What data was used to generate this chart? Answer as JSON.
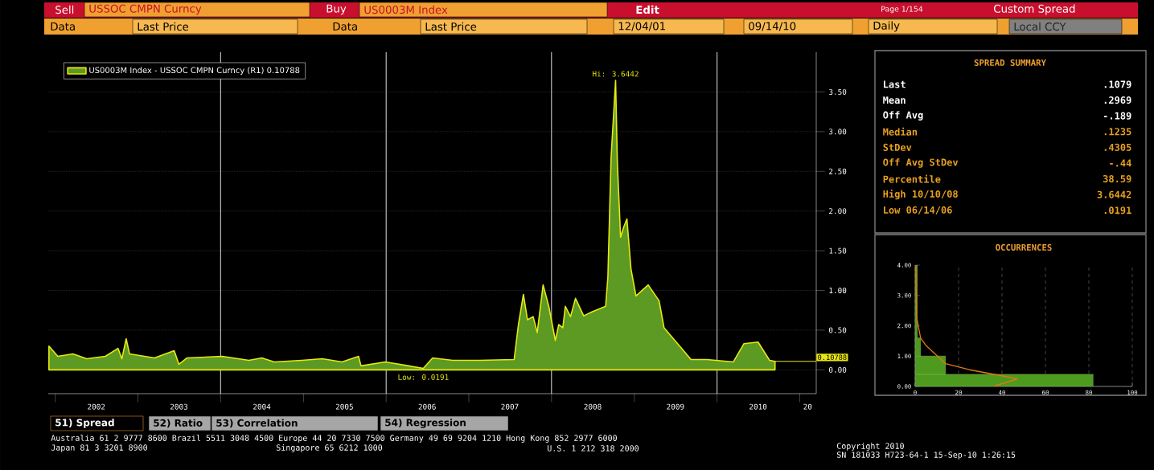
{
  "chart_data": [
    {
      "type": "other",
      "annotations": [
        "Sell",
        "USSOC CMPN Curncy",
        "Buy",
        "US0003M Index",
        "Edit",
        "Page 1/154",
        "Custom Spread",
        "Data",
        "Last Price",
        "Data",
        "Last Price",
        "12/04/01",
        "09/14/10",
        "Daily",
        "Local CCY"
      ]
    },
    {
      "type": "area",
      "x": [
        "2001-12-04",
        "2002-01-12",
        "2002-03-20",
        "2002-05-20",
        "2002-08-10",
        "2002-10-05",
        "2002-10-22",
        "2002-11-10",
        "2002-11-25",
        "2003-03-15",
        "2003-06-10",
        "2003-07-01",
        "2003-08-05",
        "2004-01-08",
        "2004-05-05",
        "2004-07-01",
        "2004-08-25",
        "2004-12-25",
        "2005-03-25",
        "2005-06-20",
        "2005-09-01",
        "2005-09-12",
        "2005-12-28",
        "2006-06-14",
        "2006-07-25",
        "2006-10-22",
        "2007-02-17",
        "2007-07-20",
        "2007-08-08",
        "2007-08-30",
        "2007-09-17",
        "2007-10-12",
        "2007-10-30",
        "2007-11-25",
        "2007-12-20",
        "2008-01-18",
        "2008-02-02",
        "2008-02-20",
        "2008-03-02",
        "2008-03-25",
        "2008-04-16",
        "2008-05-22",
        "2008-06-27",
        "2008-08-27",
        "2008-09-06",
        "2008-09-20",
        "2008-10-10",
        "2008-10-18",
        "2008-11-01",
        "2008-11-15",
        "2008-11-29",
        "2008-12-17",
        "2009-01-08",
        "2009-03-03",
        "2009-04-20",
        "2009-05-12",
        "2009-07-20",
        "2009-09-08",
        "2009-11-17",
        "2010-03-14",
        "2010-04-30",
        "2010-07-01",
        "2010-08-21",
        "2010-09-14"
      ],
      "series": [
        {
          "name": "US0003M Index - USSOC CMPN Curncy (R1) 0.10788",
          "color": "#e8e810",
          "values": [
            0.3,
            0.17,
            0.2,
            0.14,
            0.17,
            0.27,
            0.14,
            0.39,
            0.2,
            0.15,
            0.24,
            0.07,
            0.15,
            0.17,
            0.12,
            0.15,
            0.1,
            0.12,
            0.14,
            0.1,
            0.17,
            0.05,
            0.1,
            0.0191,
            0.15,
            0.12,
            0.12,
            0.13,
            0.57,
            0.95,
            0.63,
            0.67,
            0.47,
            1.07,
            0.8,
            0.37,
            0.57,
            0.53,
            0.8,
            0.67,
            0.9,
            0.68,
            0.73,
            0.8,
            1.17,
            2.67,
            3.6442,
            2.6,
            1.67,
            1.8,
            1.9,
            1.27,
            0.93,
            1.07,
            0.87,
            0.53,
            0.3,
            0.13,
            0.13,
            0.1,
            0.33,
            0.35,
            0.12,
            0.10788
          ]
        }
      ],
      "xlim": [
        "2001-12-01",
        "2011-03-15"
      ],
      "ylim": [
        -0.3,
        4.0
      ],
      "xticks": [
        {
          "value": "2002-07-01",
          "label": "2002"
        },
        {
          "value": "2003-07-01",
          "label": "2003"
        },
        {
          "value": "2004-07-01",
          "label": "2004"
        },
        {
          "value": "2005-07-01",
          "label": "2005"
        },
        {
          "value": "2006-07-01",
          "label": "2006"
        },
        {
          "value": "2007-07-01",
          "label": "2007"
        },
        {
          "value": "2008-07-01",
          "label": "2008"
        },
        {
          "value": "2009-07-01",
          "label": "2009"
        },
        {
          "value": "2010-07-01",
          "label": "2010"
        },
        {
          "value": "2011-02-05",
          "label": "20"
        },
        {
          "value": "2002-01-01",
          "label": null
        },
        {
          "value": "2003-01-01",
          "label": null
        },
        {
          "value": "2004-01-01",
          "label": null
        },
        {
          "value": "2005-01-01",
          "label": null
        },
        {
          "value": "2006-01-01",
          "label": null
        },
        {
          "value": "2007-01-01",
          "label": null
        },
        {
          "value": "2008-01-01",
          "label": null
        },
        {
          "value": "2009-01-01",
          "label": null
        },
        {
          "value": "2010-01-01",
          "label": null
        },
        {
          "value": "2011-01-01",
          "label": null
        }
      ],
      "yticks": [
        {
          "value": 0,
          "label": "0.00"
        },
        {
          "value": 0.5,
          "label": "0.50"
        },
        {
          "value": 1.0,
          "label": "1.00"
        },
        {
          "value": 1.5,
          "label": "1.50"
        },
        {
          "value": 2.0,
          "label": "2.00"
        },
        {
          "value": 2.5,
          "label": "2.50"
        },
        {
          "value": 3.0,
          "label": "3.00"
        },
        {
          "value": 3.5,
          "label": "3.50"
        }
      ],
      "grid": "y",
      "legend": "top left",
      "ref_lines": [
        {
          "axis": "x",
          "value": "2004-01-01",
          "color": "#d0d0d0"
        },
        {
          "axis": "x",
          "value": "2006-01-01",
          "color": "#d0d0d0"
        },
        {
          "axis": "x",
          "value": "2008-01-01",
          "color": "#d0d0d0"
        },
        {
          "axis": "x",
          "value": "2010-01-01",
          "color": "#d0d0d0"
        }
      ],
      "annotations": [
        {
          "text": "Hi: 3.6442",
          "x": "2008-10-10",
          "y": 3.6442
        },
        {
          "text": "Low: 0.0191",
          "x": "2006-06-14",
          "y": 0.0191
        },
        {
          "text": "0.10788",
          "x": "2010-09-14",
          "y": 0.10788
        }
      ]
    },
    {
      "type": "other",
      "title": "SPREAD SUMMARY",
      "categories": [
        "Last",
        "Mean",
        "Off Avg",
        "Median",
        "StDev",
        "Off Avg StDev",
        "Percentile",
        "High 10/10/08",
        "Low 06/14/06"
      ],
      "value_labels": [
        ".1079",
        ".2969",
        "-.189",
        ".1235",
        ".4305",
        "-.44",
        "38.59",
        "3.6442",
        ".0191"
      ],
      "colors": [
        "#ffffff",
        "#ffffff",
        "#ffffff",
        "#e8a020",
        "#e8a020",
        "#e8a020",
        "#e8a020",
        "#e8a020",
        "#e8a020"
      ]
    },
    {
      "type": "histogram",
      "title": "OCCURRENCES",
      "orientation": "horizontal",
      "bins": [
        0,
        0.4,
        1.0,
        1.6,
        4.0
      ],
      "values": [
        82,
        14,
        2.5,
        1
      ],
      "color": "#4e9a1e",
      "series": [
        {
          "type": "line",
          "color": "#e07a10",
          "x": [
            0.0,
            0.25,
            0.35,
            0.55,
            0.75,
            1.35,
            1.6,
            2.3,
            4.0
          ],
          "values": [
            36,
            47,
            40,
            25,
            14,
            5,
            2.5,
            0.6,
            0.3
          ]
        }
      ],
      "xlim": [
        0,
        100
      ],
      "ylim": [
        0,
        4.0
      ],
      "xticks": [
        0,
        20,
        40,
        60,
        80,
        100
      ],
      "yticks": [
        {
          "value": 0,
          "label": "0.00"
        },
        {
          "value": 1,
          "label": "1.00"
        },
        {
          "value": 2,
          "label": "2.00"
        },
        {
          "value": 3,
          "label": "3.00"
        },
        {
          "value": 4,
          "label": "4.00"
        }
      ],
      "grid": "x"
    },
    {
      "type": "other",
      "annotations": [
        "51) Spread",
        "52) Ratio",
        "53) Correlation",
        "54) Regression",
        "Australia 61 2 9777 8600 Brazil 5511 3048 4500 Europe 44 20 7330 7500 Germany 49 69 9204 1210 Hong Kong 852 2977 6000",
        "Japan 81 3 3201 8900",
        "Singapore 65 6212 1000",
        "U.S. 1 212 318 2000",
        "Copyright 2010",
        "SN 181033 H723-64-1 15-Sep-10 1:26:15"
      ]
    }
  ]
}
